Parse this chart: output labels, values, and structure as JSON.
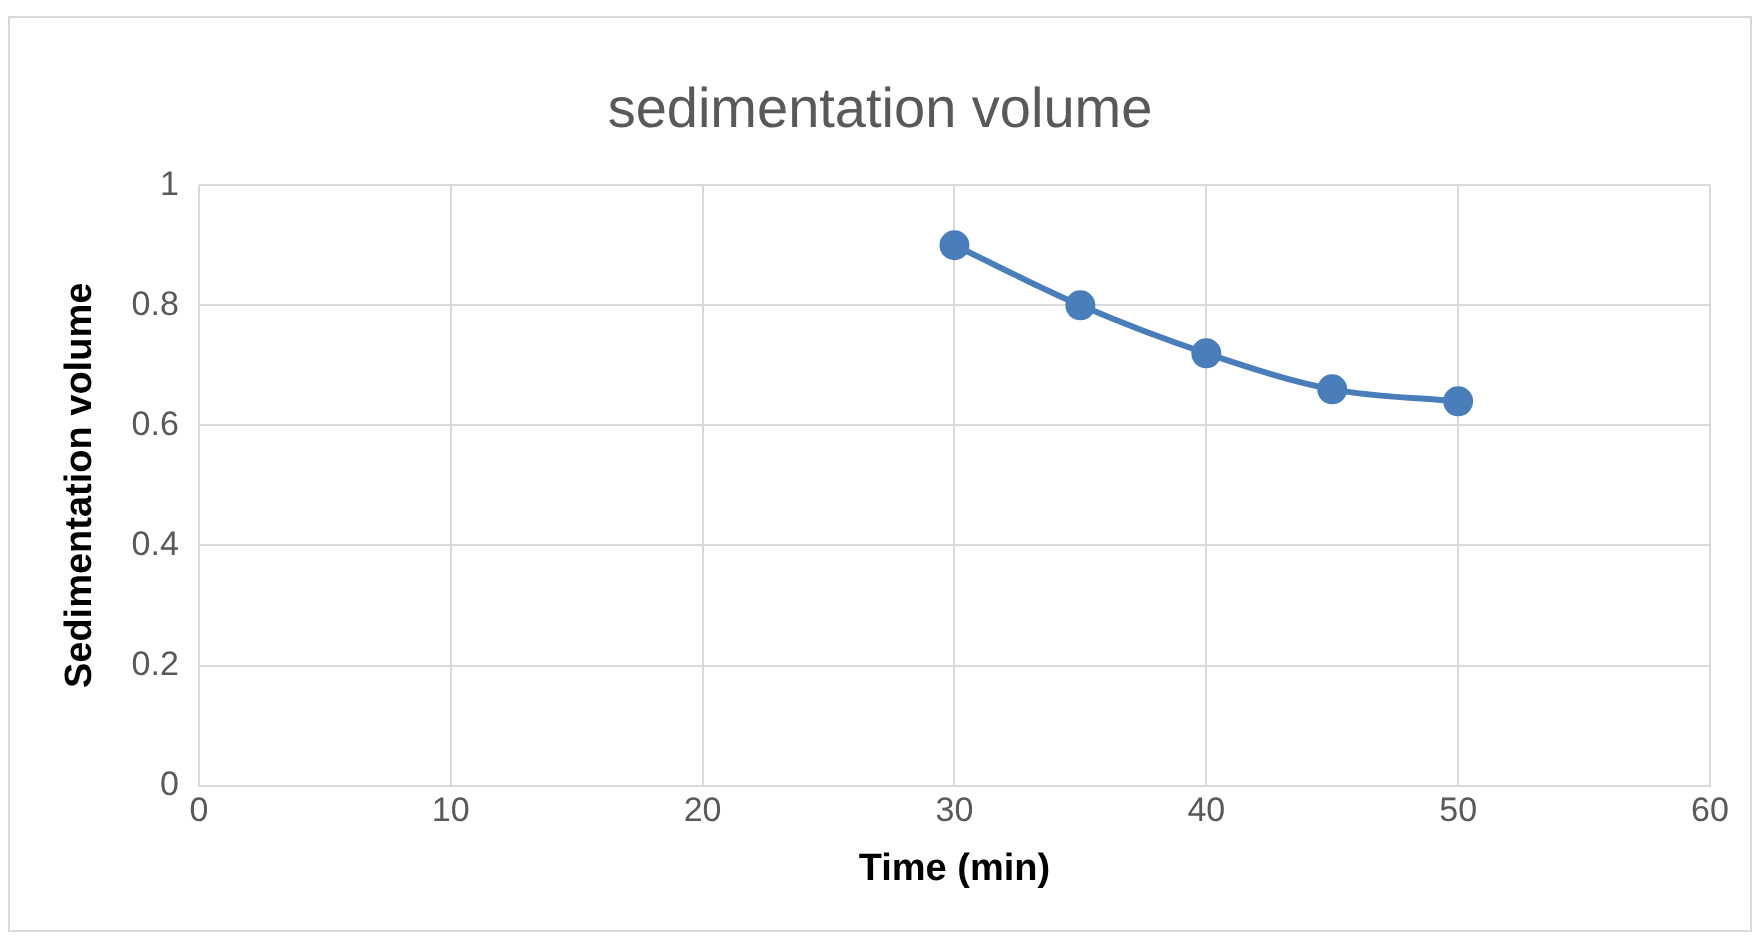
{
  "chart_data": {
    "type": "line",
    "title": "sedimentation volume",
    "xlabel": "Time (min)",
    "ylabel": "Sedimentation volume",
    "x": [
      30,
      35,
      40,
      45,
      50
    ],
    "series": [
      {
        "color": "#4a7ebb",
        "values": [
          0.9,
          0.8,
          0.72,
          0.66,
          0.64
        ]
      }
    ],
    "xlim": [
      0,
      60
    ],
    "xticks": [
      0,
      10,
      20,
      30,
      40,
      50,
      60
    ],
    "ylim": [
      0,
      1
    ],
    "yticks": [
      0,
      0.2,
      0.4,
      0.6,
      0.8,
      1
    ],
    "grid": true,
    "legend": false,
    "marker": "circle",
    "line_style": "solid"
  }
}
